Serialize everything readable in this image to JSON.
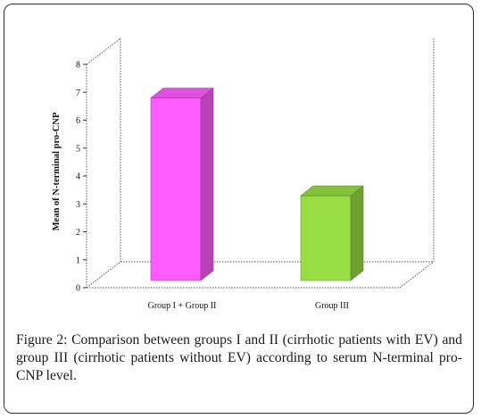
{
  "chart_data": {
    "type": "bar",
    "categories": [
      "Group I + Group II",
      "Group III"
    ],
    "values": [
      7.05,
      3.55
    ],
    "ylabel": "Mean of N-terminal pro-CNP",
    "xlabel": "",
    "ylim": [
      0,
      8
    ],
    "yticks": [
      "0",
      "1",
      "2",
      "3",
      "4",
      "5",
      "6",
      "7",
      "8"
    ],
    "bar_colors": [
      "#ff5cff",
      "#99dd44"
    ],
    "grid": false,
    "three_d": true
  },
  "caption": {
    "label": "Figure 2:",
    "text": "Comparison between groups I and II (cirrhotic patients with EV) and group III (cirrhotic patients without EV) according to serum N-terminal pro-CNP level."
  }
}
